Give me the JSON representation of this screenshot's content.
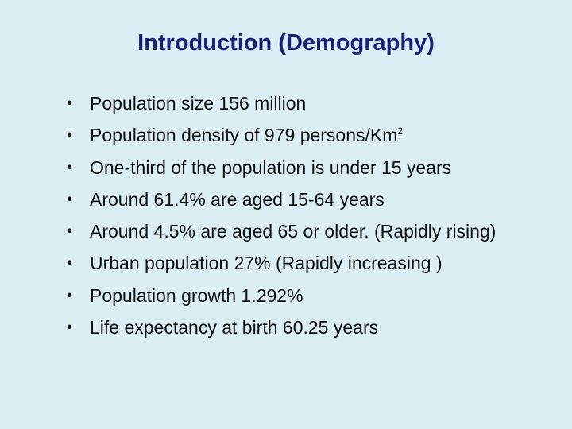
{
  "slide": {
    "title": "Introduction (Demography)",
    "bullet_glyph": "•",
    "bullets": [
      "Population size 156 million",
      "Population density of 979 persons/Km",
      "One-third of the population is under 15 years",
      "Around 61.4% are aged 15-64 years",
      "Around 4.5% are aged 65 or older. (Rapidly rising)",
      "Urban population 27% (Rapidly increasing )",
      "Population growth 1.292%",
      "Life expectancy at birth 60.25 years"
    ],
    "density_superscript": "2"
  },
  "colors": {
    "background": "#dbeef4",
    "title": "#1b1e7a",
    "text": "#111111"
  }
}
